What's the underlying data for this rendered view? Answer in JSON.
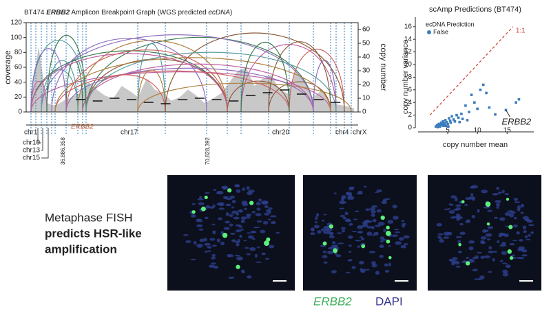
{
  "chart_data": [
    {
      "type": "breakpoint",
      "title_parts": [
        "BT474 ",
        "ERBB2",
        " Amplicon Breakpoint Graph (WGS predicted ",
        "ecDNA",
        ")"
      ],
      "ylabel": "coverage",
      "y2label": "copy number",
      "ylim": [
        0,
        120
      ],
      "yticks": [
        0,
        20,
        40,
        60,
        80,
        100,
        120
      ],
      "y2lim": [
        0,
        65
      ],
      "y2ticks": [
        0,
        10,
        20,
        30,
        40,
        50,
        60
      ],
      "series": [
        {
          "name": "coverage",
          "color": "#c8c8c8",
          "values": [
            10,
            88,
            12,
            8,
            15,
            20,
            25,
            40,
            30,
            22,
            18,
            35,
            28,
            20,
            45,
            30,
            25,
            15,
            20,
            30,
            22,
            12,
            18,
            25,
            40,
            55,
            60,
            35,
            45,
            50,
            30,
            25,
            55,
            40,
            20,
            28,
            15,
            10,
            8,
            5
          ]
        },
        {
          "name": "copy number",
          "axis": "y2",
          "color": "#111111",
          "values": [
            9,
            8,
            10,
            9,
            7,
            6,
            9,
            10,
            9,
            8,
            12,
            14,
            16,
            13,
            9,
            7
          ]
        }
      ],
      "chromosomes": [
        "chr1",
        "chr10",
        "chr13",
        "chr15",
        "chr17",
        "chr20",
        "chr4",
        "chrX"
      ],
      "gene_label": "ERBB2",
      "breakpoint_labels": [
        "36,886,358",
        "70,828,392"
      ]
    },
    {
      "type": "scatter",
      "title": "scAmp Predictions (BT474)",
      "xlabel": "copy number mean",
      "ylabel": "copy number variance",
      "xlim": [
        0,
        19.5
      ],
      "xticks": [
        5,
        10,
        15
      ],
      "ylim": [
        0,
        17.5
      ],
      "yticks": [
        0,
        2,
        4,
        6,
        8,
        10,
        12,
        14,
        16
      ],
      "legend_title": "ecDNA Prediction",
      "identity_line": true,
      "identity_label": "1:1",
      "point_label": "ERBB2",
      "series": [
        {
          "name": "False",
          "color": "#3b7dbd",
          "x": [
            3.0,
            3.2,
            3.4,
            3.5,
            3.6,
            3.8,
            3.9,
            4.0,
            4.1,
            4.2,
            4.3,
            4.4,
            4.5,
            4.6,
            4.8,
            5.0,
            5.2,
            5.4,
            5.5,
            5.7,
            6.0,
            6.2,
            6.5,
            6.8,
            7.0,
            7.3,
            7.5,
            8.0,
            8.3,
            8.6,
            9.0,
            9.5,
            10.0,
            10.5,
            11.0,
            11.5,
            12.0,
            13.0,
            14.8,
            16.5,
            17.0,
            3.3,
            3.7,
            4.7,
            5.1
          ],
          "values": [
            0.2,
            0.4,
            0.3,
            0.6,
            0.2,
            0.5,
            0.8,
            0.4,
            0.6,
            1.0,
            0.3,
            0.7,
            0.5,
            1.2,
            0.9,
            0.6,
            1.5,
            1.1,
            0.8,
            1.8,
            1.3,
            1.0,
            2.0,
            1.6,
            0.9,
            2.2,
            1.4,
            3.5,
            1.2,
            2.5,
            5.2,
            4.0,
            3.0,
            6.0,
            6.8,
            5.5,
            3.2,
            2.1,
            2.8,
            4.0,
            4.5,
            0.1,
            0.2,
            0.3,
            0.2
          ]
        }
      ]
    }
  ],
  "figure": {
    "fish_caption": [
      "Metaphase FISH",
      "predicts HSR-like",
      "amplification"
    ],
    "fish_legend": [
      "ERBB2",
      "DAPI"
    ]
  }
}
